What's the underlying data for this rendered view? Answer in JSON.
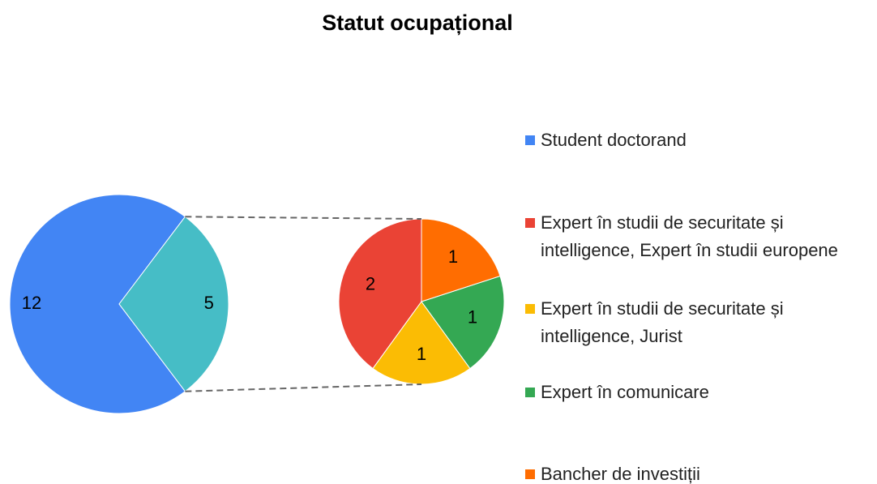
{
  "chart_data": {
    "type": "pie",
    "title": "Statut ocupațional",
    "categories": [
      "Student doctorand",
      "Expert în studii de securitate și intelligence, Expert în studii europene",
      "Expert în studii de securitate și intelligence, Jurist",
      "Expert în comunicare",
      "Bancher de investiții"
    ],
    "values": [
      12,
      2,
      1,
      1,
      1
    ],
    "colors": [
      "#4285f4",
      "#ea4335",
      "#fbbc04",
      "#34a853",
      "#ff6d01"
    ],
    "other": {
      "value": 5,
      "color": "#46bdc6"
    }
  }
}
